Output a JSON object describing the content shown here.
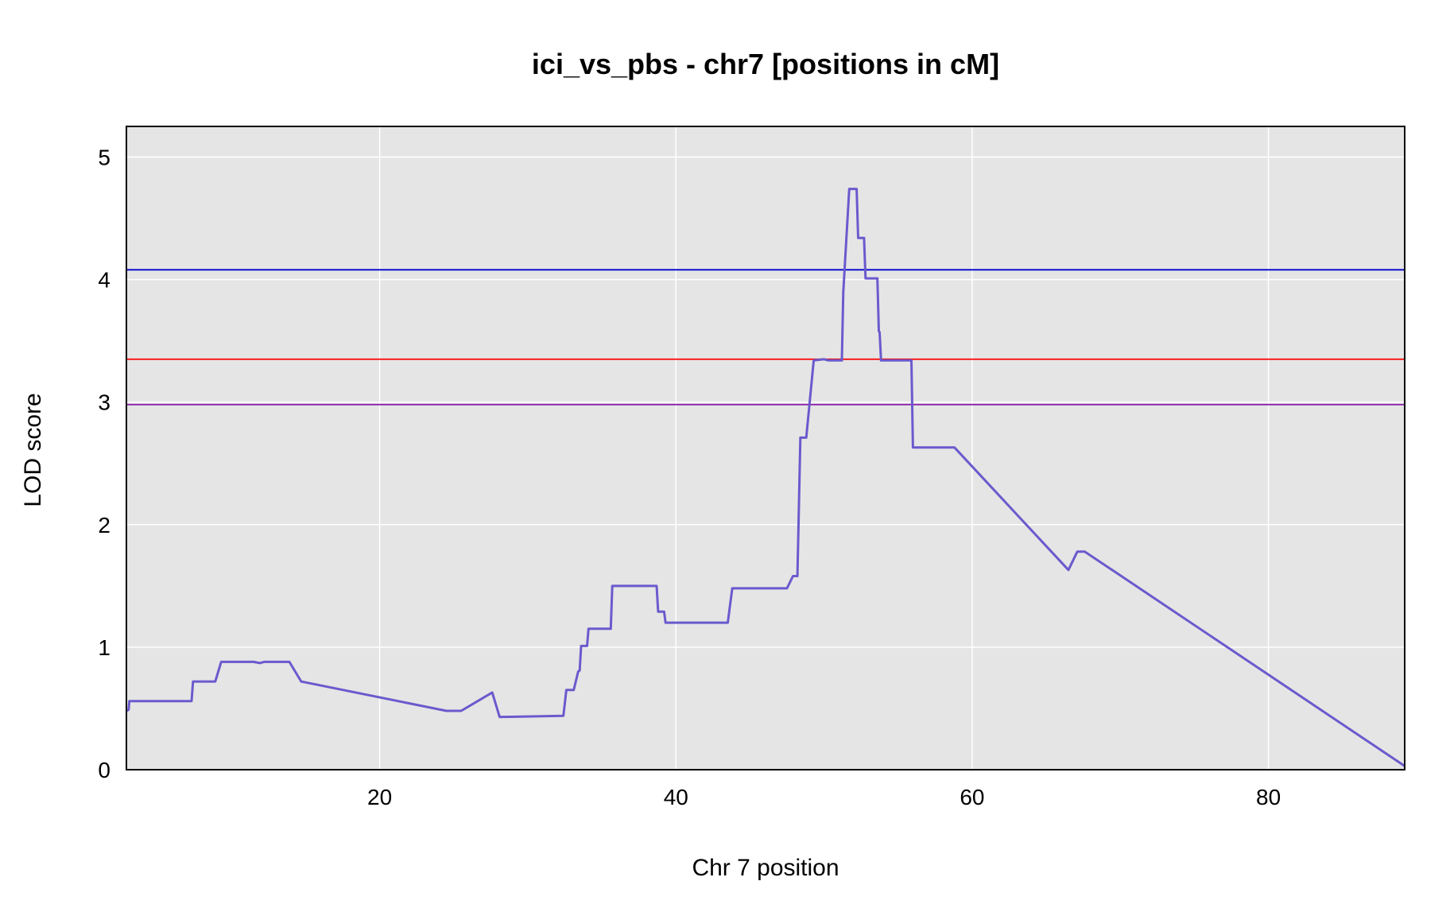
{
  "chart_data": {
    "type": "line",
    "title": "ici_vs_pbs - chr7 [positions in cM]",
    "xlabel": "Chr 7 position",
    "ylabel": "LOD score",
    "xlim": [
      2.9,
      89.2
    ],
    "ylim": [
      0,
      5.25
    ],
    "xticks": [
      20,
      40,
      60,
      80
    ],
    "yticks": [
      0,
      1,
      2,
      3,
      4,
      5
    ],
    "grid": true,
    "colors": {
      "background": "#e5e5e5",
      "grid": "#ffffff",
      "line": "#6a5acd",
      "threshold_high": "#0000cd",
      "threshold_mid": "#ff0000",
      "threshold_low": "#8e24aa"
    },
    "thresholds": [
      4.08,
      3.35,
      2.98
    ],
    "series": [
      {
        "x": [
          2.9,
          3.05,
          3.1,
          7.3,
          7.4,
          8.9,
          9.3,
          11.2,
          11.5,
          11.9,
          12.2,
          13.9,
          14.7,
          24.5,
          25.5,
          27.6,
          28.1,
          32.4,
          32.6,
          33.1,
          33.4,
          33.5,
          33.6,
          34.0,
          34.1,
          35.6,
          35.7,
          38.7,
          38.8,
          39.2,
          39.3,
          43.5,
          43.8,
          47.5,
          47.9,
          48.2,
          48.4,
          48.8,
          49.3,
          50.0,
          50.3,
          51.2,
          51.3,
          51.7,
          52.2,
          52.3,
          52.7,
          52.8,
          53.6,
          53.7,
          53.75,
          53.85,
          55.9,
          56.0,
          58.8,
          66.5,
          67.1,
          67.6,
          89.2
        ],
        "values": [
          0.48,
          0.49,
          0.56,
          0.56,
          0.72,
          0.72,
          0.88,
          0.88,
          0.88,
          0.87,
          0.88,
          0.88,
          0.72,
          0.48,
          0.48,
          0.63,
          0.43,
          0.44,
          0.65,
          0.65,
          0.8,
          0.81,
          1.01,
          1.01,
          1.15,
          1.15,
          1.5,
          1.5,
          1.29,
          1.29,
          1.2,
          1.2,
          1.48,
          1.48,
          1.58,
          1.58,
          2.71,
          2.71,
          3.34,
          3.35,
          3.34,
          3.34,
          3.9,
          4.74,
          4.74,
          4.34,
          4.34,
          4.01,
          4.01,
          3.58,
          3.57,
          3.34,
          3.34,
          2.63,
          2.63,
          1.63,
          1.78,
          1.78,
          0.03
        ]
      }
    ]
  }
}
